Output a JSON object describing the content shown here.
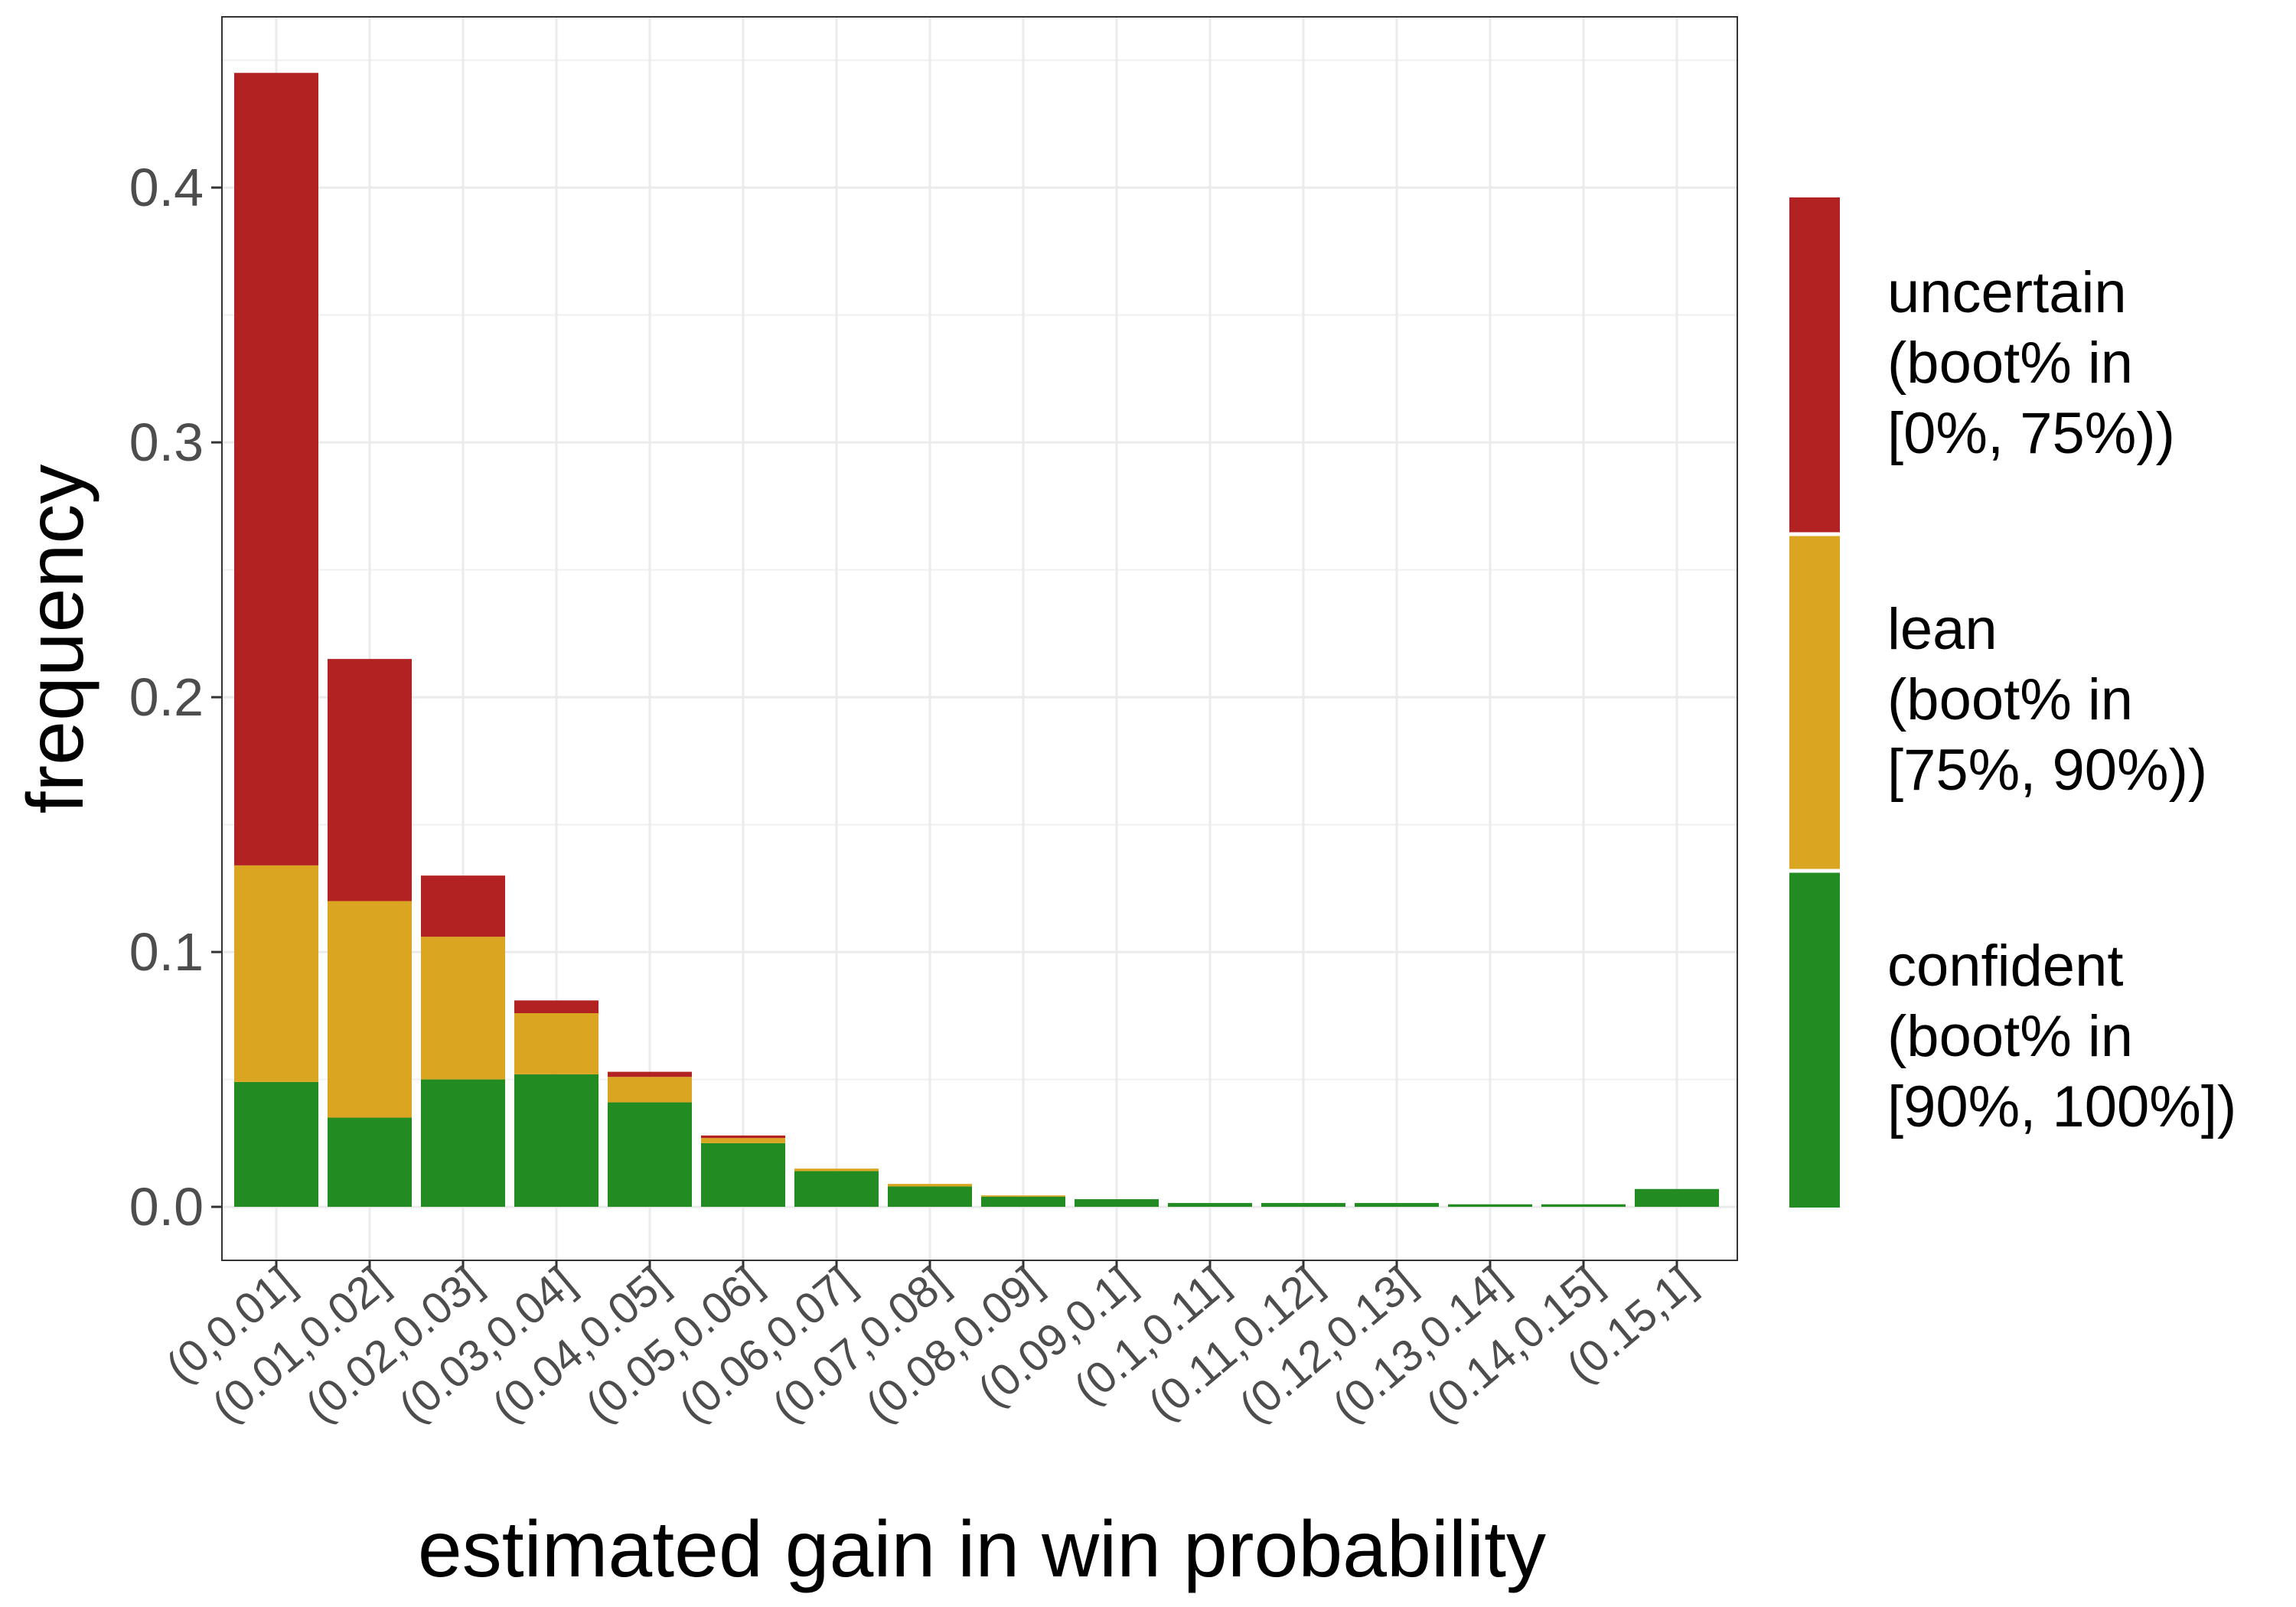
{
  "chart_data": {
    "type": "bar",
    "stacked": true,
    "xlabel": "estimated gain in win probability",
    "ylabel": "frequency",
    "ylim": [
      -0.021,
      0.467
    ],
    "yticks": [
      0.0,
      0.1,
      0.2,
      0.3,
      0.4
    ],
    "ytick_labels": [
      "0.0",
      "0.1",
      "0.2",
      "0.3",
      "0.4"
    ],
    "grid": true,
    "legend_position": "right",
    "categories": [
      "(0,0.01]",
      "(0.01,0.02]",
      "(0.02,0.03]",
      "(0.03,0.04]",
      "(0.04,0.05]",
      "(0.05,0.06]",
      "(0.06,0.07]",
      "(0.07,0.08]",
      "(0.08,0.09]",
      "(0.09,0.1]",
      "(0.1,0.11]",
      "(0.11,0.12]",
      "(0.12,0.13]",
      "(0.13,0.14]",
      "(0.14,0.15]",
      "(0.15,1]"
    ],
    "series": [
      {
        "name": "confident (boot% in [90%, 100%])",
        "legend_lines": [
          "confident",
          "(boot% in",
          "[90%, 100%])"
        ],
        "color": "#228b22",
        "values": [
          0.049,
          0.035,
          0.05,
          0.052,
          0.041,
          0.025,
          0.014,
          0.008,
          0.004,
          0.003,
          0.0015,
          0.0015,
          0.0015,
          0.001,
          0.001,
          0.007
        ]
      },
      {
        "name": "lean (boot% in [75%, 90%))",
        "legend_lines": [
          "lean",
          "(boot% in",
          "[75%, 90%))"
        ],
        "color": "#daa520",
        "values": [
          0.085,
          0.085,
          0.056,
          0.024,
          0.01,
          0.002,
          0.001,
          0.001,
          0.0005,
          0.0,
          0.0,
          0.0,
          0.0,
          0.0,
          0.0,
          0.0
        ]
      },
      {
        "name": "uncertain (boot% in [0%, 75%))",
        "legend_lines": [
          "uncertain",
          "(boot% in",
          "[0%, 75%))"
        ],
        "color": "#b22222",
        "values": [
          0.311,
          0.095,
          0.024,
          0.005,
          0.002,
          0.001,
          0.0,
          0.0,
          0.0,
          0.0,
          0.0,
          0.0,
          0.0,
          0.0,
          0.0,
          0.0
        ]
      }
    ]
  }
}
